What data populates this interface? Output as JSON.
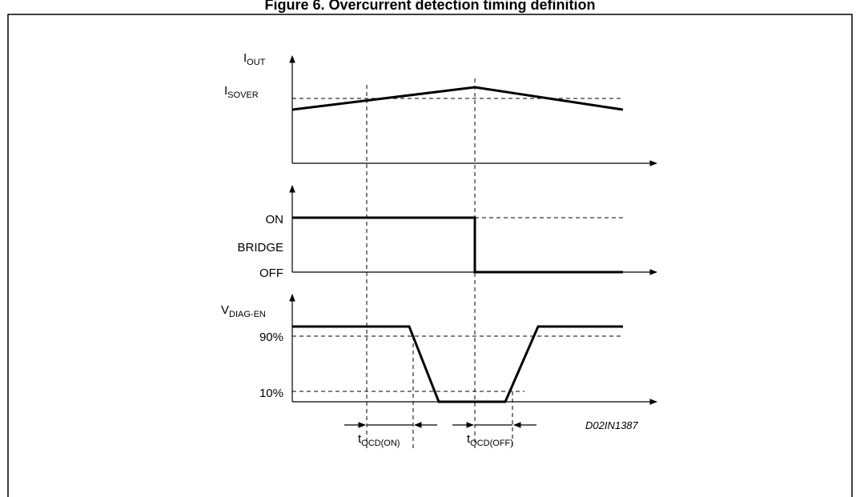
{
  "title": "Figure 6. Overcurrent detection timing definition",
  "diagram_code": "D02IN1387",
  "panels": {
    "iout": {
      "axis_label": {
        "main": "I",
        "sub": "OUT"
      },
      "level_label": {
        "main": "I",
        "sub": "SOVER"
      }
    },
    "bridge": {
      "on_label": "ON",
      "name_label": "BRIDGE",
      "off_label": "OFF"
    },
    "vdiag": {
      "axis_label": {
        "main": "V",
        "sub": "DIAG-EN"
      },
      "high_label": "90%",
      "low_label": "10%"
    }
  },
  "timing": {
    "on_label": {
      "main": "t",
      "sub": "OCD(ON)"
    },
    "off_label": {
      "main": "t",
      "sub": "OCD(OFF)"
    }
  },
  "colors": {
    "line": "#000000",
    "background": "#ffffff"
  }
}
